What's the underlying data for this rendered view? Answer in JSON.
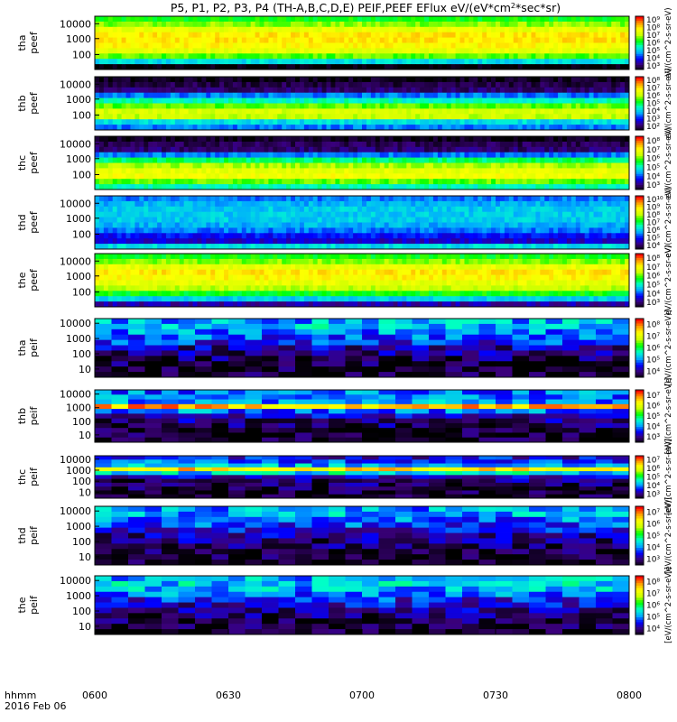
{
  "chart_data": {
    "type": "heatmap",
    "title": "P5, P1, P2, P3, P4 (TH-A,B,C,D,E) PEIF,PEEF EFlux eV/(eV*cm^2*sec*sr)",
    "title_parts": {
      "before_sup": "P5, P1, P2, P3, P4 (TH-A,B,C,D,E) PEIF,PEEF EFlux eV/(eV*cm",
      "sup": "2",
      "after_sup": "*sec*sr)"
    },
    "x_tick_labels": [
      "0600",
      "0630",
      "0700",
      "0730",
      "0800"
    ],
    "x_axis_labels": [
      "hhmm",
      "2016 Feb 06"
    ],
    "y_ticks_peef": [
      "10000",
      "1000",
      "100"
    ],
    "y_ticks_peif": [
      "10000",
      "1000",
      "100",
      "10"
    ],
    "cb_label_peef": "eV/(cm^2-s-sr-eV)",
    "cb_label_peif": "[eV/(cm^2-s-sr-eV)]",
    "panels": [
      {
        "probe": "thа",
        "label1": "tha",
        "label2": "peef",
        "species": "electron",
        "levels": [
          2.2,
          2.5,
          2.9,
          3.2,
          3.2,
          3.1,
          2.9,
          2.4,
          1.6,
          0.0
        ],
        "cb_ticks": [
          "10⁹",
          "10⁸",
          "10⁷",
          "10⁶",
          "10⁵",
          "10⁴",
          "10³"
        ]
      },
      {
        "probe": "thb",
        "label1": "thb",
        "label2": "peef",
        "species": "electron",
        "levels": [
          0.1,
          0.25,
          0.4,
          1.2,
          1.8,
          2.4,
          2.8,
          2.7,
          1.6,
          1.2
        ],
        "cb_ticks": [
          "10⁸",
          "10⁷",
          "10⁶",
          "10⁵",
          "10⁴",
          "10³",
          "10²"
        ]
      },
      {
        "probe": "thc",
        "label1": "thc",
        "label2": "peef",
        "species": "electron",
        "levels": [
          0.1,
          0.3,
          0.4,
          1.2,
          2.0,
          2.6,
          2.9,
          3.0,
          2.4,
          1.8
        ],
        "cb_ticks": [
          "10⁸",
          "10⁷",
          "10⁶",
          "10⁵",
          "10⁴",
          "10³"
        ]
      },
      {
        "probe": "thd",
        "label1": "thd",
        "label2": "peef",
        "species": "electron",
        "levels": [
          1.2,
          1.4,
          1.5,
          1.5,
          1.5,
          1.4,
          1.2,
          0.9,
          0.7,
          1.6
        ],
        "cb_ticks": [
          "10¹⁰",
          "10⁹",
          "10⁸",
          "10⁷",
          "10⁶",
          "10⁵",
          "10⁴"
        ]
      },
      {
        "probe": "the",
        "label1": "the",
        "label2": "peef",
        "species": "electron",
        "levels": [
          2.2,
          2.5,
          2.9,
          3.2,
          3.1,
          2.9,
          2.7,
          2.2,
          1.5,
          0.6
        ],
        "cb_ticks": [
          "10⁸",
          "10⁷",
          "10⁶",
          "10⁵",
          "10⁴",
          "10³"
        ]
      },
      {
        "probe": "tha",
        "label1": "tha",
        "label2": "peif",
        "species": "ion",
        "levels": [
          1.4,
          1.5,
          1.3,
          1.1,
          0.9,
          0.6,
          0.45,
          0.3,
          0.2,
          0.15,
          0.1
        ],
        "cb_ticks": [
          "10⁸",
          "10⁷",
          "10⁶",
          "10⁵",
          "10⁴"
        ]
      },
      {
        "probe": "thb",
        "label1": "thb",
        "label2": "peif",
        "species": "ion",
        "levels": [
          1.2,
          1.2,
          1.3,
          3.4,
          1.2,
          0.7,
          0.5,
          0.35,
          0.2,
          0.15,
          0.1
        ],
        "cb_ticks": [
          "10⁷",
          "10⁶",
          "10⁵",
          "10⁴",
          "10³"
        ]
      },
      {
        "probe": "thc",
        "label1": "thc",
        "label2": "peif",
        "species": "ion",
        "levels": [
          0.8,
          1.1,
          1.4,
          3.2,
          1.6,
          0.7,
          0.4,
          0.3,
          0.2,
          0.15,
          0.1
        ],
        "cb_ticks": [
          "10⁷",
          "10⁶",
          "10⁵",
          "10⁴",
          "10³"
        ]
      },
      {
        "probe": "thd",
        "label1": "thd",
        "label2": "peif",
        "species": "ion",
        "levels": [
          1.3,
          1.4,
          1.2,
          1.0,
          0.8,
          0.6,
          0.45,
          0.35,
          0.2,
          0.15,
          0.1
        ],
        "cb_ticks": [
          "10⁷",
          "10⁶",
          "10⁵",
          "10⁴",
          "10³"
        ]
      },
      {
        "probe": "the",
        "label1": "the",
        "label2": "peif",
        "species": "ion",
        "levels": [
          1.4,
          1.5,
          1.4,
          1.2,
          0.9,
          0.7,
          0.5,
          0.35,
          0.25,
          0.15,
          0.1
        ],
        "cb_ticks": [
          "10⁸",
          "10⁷",
          "10⁶",
          "10⁵",
          "10⁴"
        ]
      }
    ],
    "colormap": [
      "#000000",
      "#3a007a",
      "#0000ff",
      "#00aaff",
      "#00ffcc",
      "#00ff00",
      "#ccff00",
      "#ffff00",
      "#ff9900",
      "#ff0000"
    ]
  }
}
